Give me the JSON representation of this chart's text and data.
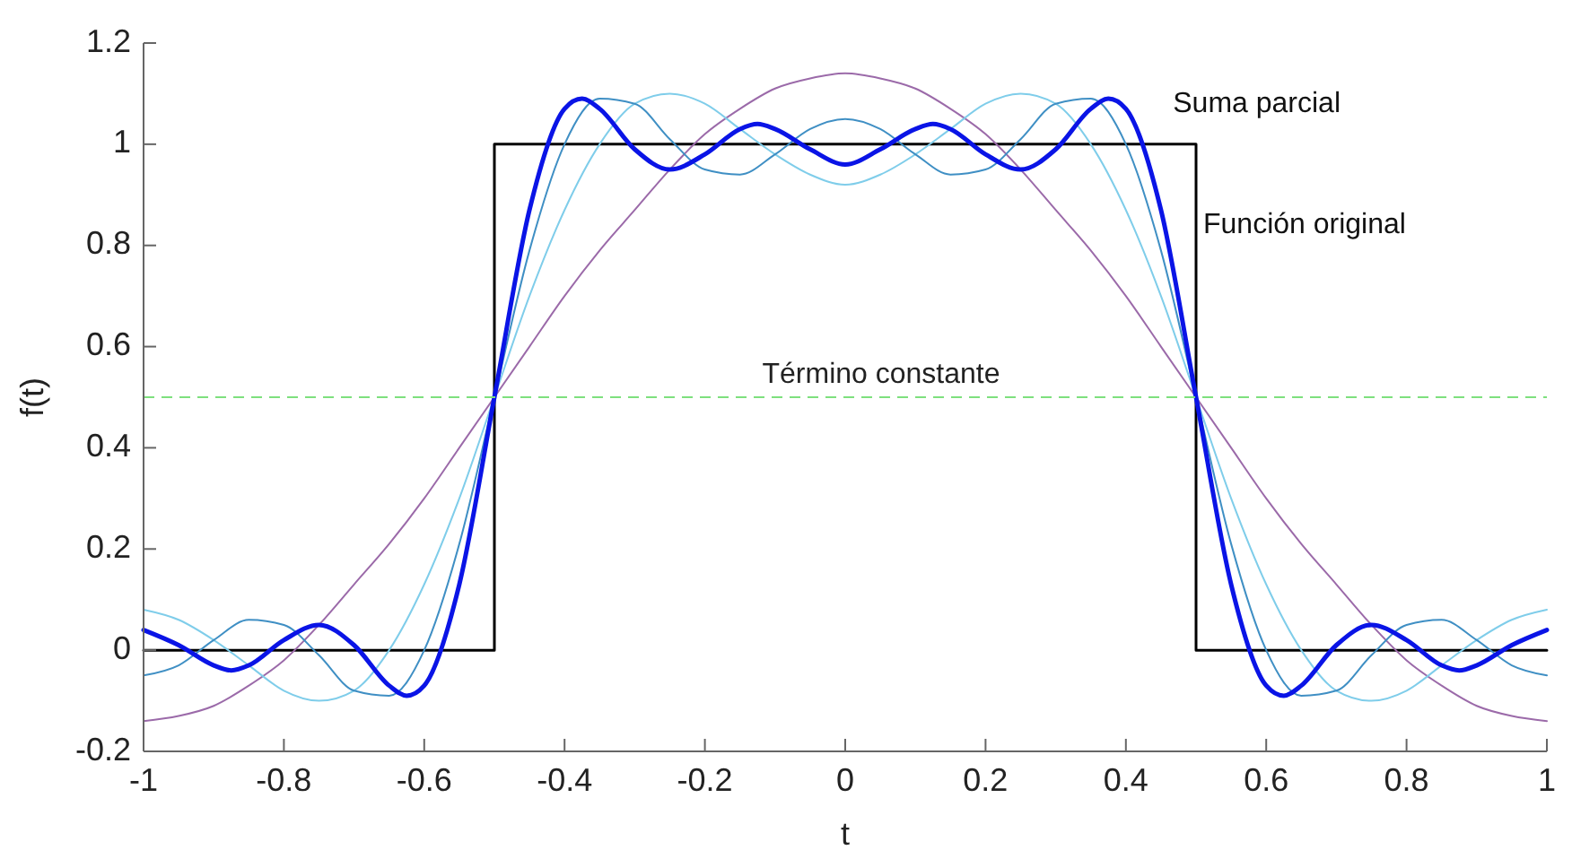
{
  "chart_data": {
    "type": "line",
    "xlabel": "t",
    "ylabel": "f(t)",
    "xlim": [
      -1,
      1
    ],
    "xticks": [
      -1,
      -0.8,
      -0.6,
      -0.4,
      -0.2,
      0,
      0.2,
      0.4,
      0.6,
      0.8,
      1
    ],
    "ylim": [
      -0.2,
      1.2
    ],
    "yticks": [
      -0.2,
      0,
      0.2,
      0.4,
      0.6,
      0.8,
      1,
      1.2
    ],
    "grid": false,
    "marker": "none",
    "line_style": "solid",
    "series": [
      {
        "color": "#000000",
        "x": [
          -1,
          -0.5,
          -0.5,
          0.5,
          0.5,
          1
        ],
        "values": [
          0,
          0,
          1,
          1,
          0,
          0
        ]
      },
      {
        "color": "#9b6aa9",
        "x": [
          -1,
          -0.95,
          -0.9,
          -0.85,
          -0.8,
          -0.75,
          -0.7,
          -0.65,
          -0.6,
          -0.55,
          -0.5,
          -0.45,
          -0.4,
          -0.35,
          -0.3,
          -0.25,
          -0.2,
          -0.15,
          -0.1,
          -0.05,
          0,
          0.05,
          0.1,
          0.15,
          0.2,
          0.25,
          0.3,
          0.35,
          0.4,
          0.45,
          0.5,
          0.55,
          0.6,
          0.65,
          0.7,
          0.75,
          0.8,
          0.85,
          0.9,
          0.95,
          1
        ],
        "values": [
          -0.14,
          -0.13,
          -0.11,
          -0.07,
          -0.02,
          0.05,
          0.13,
          0.21,
          0.3,
          0.4,
          0.5,
          0.6,
          0.7,
          0.79,
          0.87,
          0.95,
          1.02,
          1.07,
          1.11,
          1.13,
          1.14,
          1.13,
          1.11,
          1.07,
          1.02,
          0.95,
          0.87,
          0.79,
          0.7,
          0.6,
          0.5,
          0.4,
          0.3,
          0.21,
          0.13,
          0.05,
          -0.02,
          -0.07,
          -0.11,
          -0.13,
          -0.14
        ]
      },
      {
        "color": "#7fcdea",
        "x": [
          -1,
          -0.95,
          -0.9,
          -0.85,
          -0.8,
          -0.75,
          -0.7,
          -0.65,
          -0.6,
          -0.55,
          -0.5,
          -0.45,
          -0.4,
          -0.35,
          -0.3,
          -0.25,
          -0.2,
          -0.15,
          -0.1,
          -0.05,
          0,
          0.05,
          0.1,
          0.15,
          0.2,
          0.25,
          0.3,
          0.35,
          0.4,
          0.45,
          0.5,
          0.55,
          0.6,
          0.65,
          0.7,
          0.75,
          0.8,
          0.85,
          0.9,
          0.95,
          1
        ],
        "values": [
          0.08,
          0.06,
          0.02,
          -0.03,
          -0.08,
          -0.1,
          -0.08,
          0.0,
          0.13,
          0.3,
          0.5,
          0.7,
          0.87,
          1.0,
          1.08,
          1.1,
          1.08,
          1.03,
          0.98,
          0.94,
          0.92,
          0.94,
          0.98,
          1.03,
          1.08,
          1.1,
          1.08,
          1.0,
          0.87,
          0.7,
          0.5,
          0.3,
          0.13,
          0.0,
          -0.08,
          -0.1,
          -0.08,
          -0.03,
          0.02,
          0.06,
          0.08
        ]
      },
      {
        "color": "#3f8fc4",
        "x": [
          -1,
          -0.95,
          -0.9,
          -0.85,
          -0.8,
          -0.75,
          -0.7,
          -0.65,
          -0.6,
          -0.55,
          -0.5,
          -0.45,
          -0.4,
          -0.35,
          -0.3,
          -0.25,
          -0.2,
          -0.15,
          -0.1,
          -0.05,
          0,
          0.05,
          0.1,
          0.15,
          0.2,
          0.25,
          0.3,
          0.35,
          0.4,
          0.45,
          0.5,
          0.55,
          0.6,
          0.65,
          0.7,
          0.75,
          0.8,
          0.85,
          0.9,
          0.95,
          1
        ],
        "values": [
          -0.05,
          -0.03,
          0.02,
          0.06,
          0.05,
          -0.01,
          -0.08,
          -0.09,
          0.0,
          0.21,
          0.5,
          0.79,
          1.0,
          1.09,
          1.08,
          1.01,
          0.95,
          0.94,
          0.98,
          1.03,
          1.05,
          1.03,
          0.98,
          0.94,
          0.95,
          1.01,
          1.08,
          1.09,
          1.0,
          0.79,
          0.5,
          0.21,
          0.0,
          -0.09,
          -0.08,
          -0.01,
          0.05,
          0.06,
          0.02,
          -0.03,
          -0.05
        ]
      },
      {
        "color": "#0a14e6",
        "x": [
          -1,
          -0.95,
          -0.9,
          -0.875,
          -0.85,
          -0.8,
          -0.75,
          -0.7,
          -0.65,
          -0.625,
          -0.6,
          -0.55,
          -0.5,
          -0.45,
          -0.4,
          -0.375,
          -0.35,
          -0.3,
          -0.25,
          -0.2,
          -0.15,
          -0.125,
          -0.1,
          -0.05,
          0,
          0.05,
          0.1,
          0.125,
          0.15,
          0.2,
          0.25,
          0.3,
          0.35,
          0.375,
          0.4,
          0.45,
          0.5,
          0.55,
          0.6,
          0.625,
          0.65,
          0.7,
          0.75,
          0.8,
          0.85,
          0.875,
          0.9,
          0.95,
          1
        ],
        "values": [
          0.04,
          0.01,
          -0.03,
          -0.04,
          -0.03,
          0.02,
          0.05,
          0.01,
          -0.07,
          -0.09,
          -0.07,
          0.13,
          0.5,
          0.87,
          1.07,
          1.09,
          1.07,
          0.99,
          0.95,
          0.98,
          1.03,
          1.04,
          1.03,
          0.99,
          0.96,
          0.99,
          1.03,
          1.04,
          1.03,
          0.98,
          0.95,
          0.99,
          1.07,
          1.09,
          1.07,
          0.87,
          0.5,
          0.13,
          -0.07,
          -0.09,
          -0.07,
          0.01,
          0.05,
          0.02,
          -0.03,
          -0.04,
          -0.03,
          0.01,
          0.04
        ]
      }
    ],
    "ref_lines": [
      {
        "axis": "y",
        "value": 0.5,
        "label": "Término constante",
        "color": "#7ee07e",
        "line_style": "dashed"
      }
    ],
    "annotations": [
      {
        "text": "Suma parcial",
        "x": 0.375,
        "y": 1.09
      },
      {
        "text": "Función original",
        "x": 0.5,
        "y": 0.84
      }
    ]
  }
}
